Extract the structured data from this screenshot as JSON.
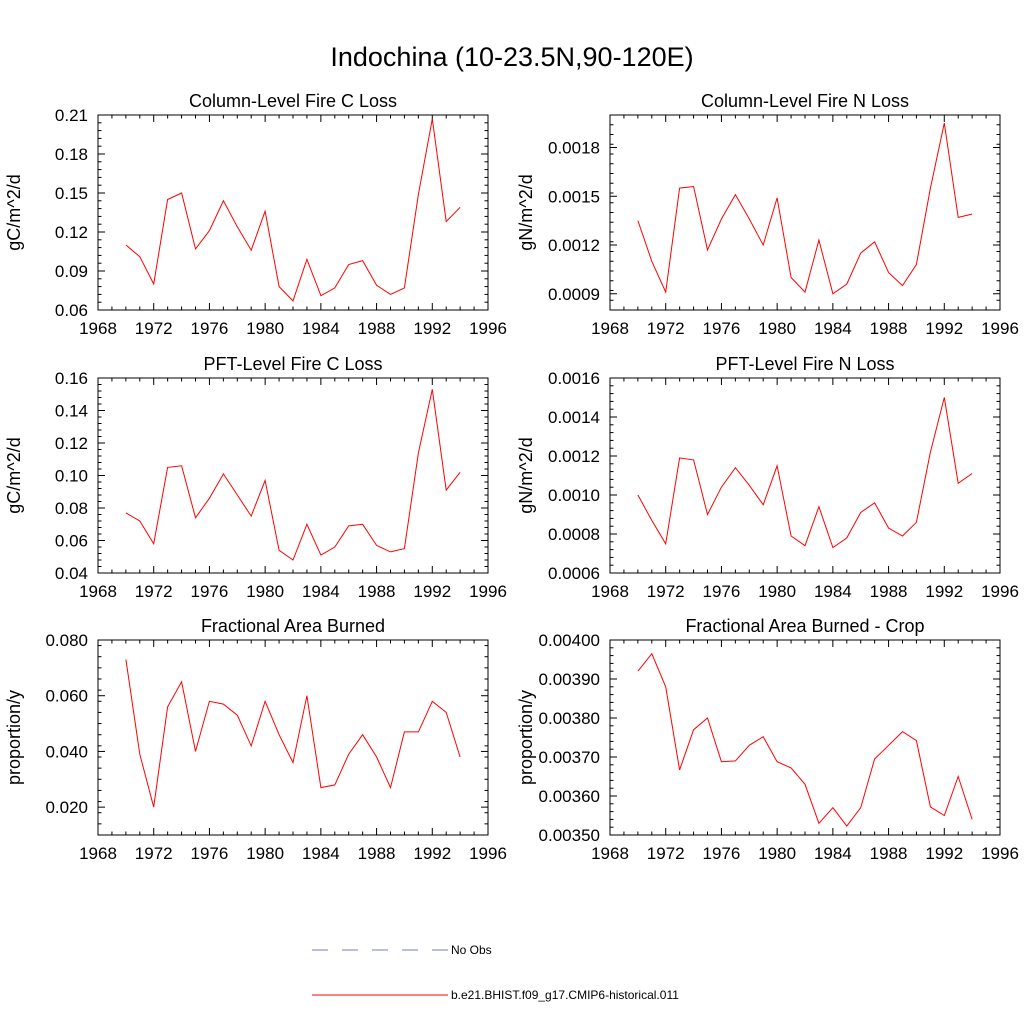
{
  "figure_title": "Indochina (10-23.5N,90-120E)",
  "legend": {
    "items": [
      {
        "label": "No Obs",
        "color": "#7a7ad0",
        "style": "dashed"
      },
      {
        "label": "b.e21.BHIST.f09_g17.CMIP6-historical.011",
        "color": "#ff0000",
        "style": "solid"
      }
    ]
  },
  "chart_data": [
    {
      "type": "line",
      "title": "Column-Level Fire C Loss",
      "ylabel": "gC/m^2/d",
      "xlim": [
        1968,
        1996
      ],
      "xticks": [
        1968,
        1972,
        1976,
        1980,
        1984,
        1988,
        1992,
        1996
      ],
      "ylim": [
        0.06,
        0.21
      ],
      "yticks": [
        "0.06",
        "0.09",
        "0.12",
        "0.15",
        "0.18",
        "0.21"
      ],
      "x": [
        1970,
        1971,
        1972,
        1973,
        1974,
        1975,
        1976,
        1977,
        1978,
        1979,
        1980,
        1981,
        1982,
        1983,
        1984,
        1985,
        1986,
        1987,
        1988,
        1989,
        1990,
        1991,
        1992,
        1993,
        1994
      ],
      "series": [
        {
          "name": "b.e21.BHIST.f09_g17.CMIP6-historical.011",
          "color": "#ff0000",
          "values": [
            0.11,
            0.101,
            0.08,
            0.145,
            0.15,
            0.107,
            0.121,
            0.144,
            0.124,
            0.106,
            0.136,
            0.078,
            0.067,
            0.099,
            0.071,
            0.077,
            0.095,
            0.098,
            0.079,
            0.072,
            0.077,
            0.149,
            0.207,
            0.128,
            0.139
          ]
        }
      ]
    },
    {
      "type": "line",
      "title": "Column-Level Fire N Loss",
      "ylabel": "gN/m^2/d",
      "xlim": [
        1968,
        1996
      ],
      "xticks": [
        1968,
        1972,
        1976,
        1980,
        1984,
        1988,
        1992,
        1996
      ],
      "ylim": [
        0.0008,
        0.002
      ],
      "yticks": [
        "0.0009",
        "0.0012",
        "0.0015",
        "0.0018"
      ],
      "x": [
        1970,
        1971,
        1972,
        1973,
        1974,
        1975,
        1976,
        1977,
        1978,
        1979,
        1980,
        1981,
        1982,
        1983,
        1984,
        1985,
        1986,
        1987,
        1988,
        1989,
        1990,
        1991,
        1992,
        1993,
        1994
      ],
      "series": [
        {
          "name": "b.e21.BHIST.f09_g17.CMIP6-historical.011",
          "color": "#ff0000",
          "values": [
            0.00135,
            0.0011,
            0.00091,
            0.00155,
            0.00156,
            0.00117,
            0.00136,
            0.00151,
            0.00136,
            0.0012,
            0.00149,
            0.001,
            0.00091,
            0.00123,
            0.0009,
            0.00096,
            0.00115,
            0.00122,
            0.00103,
            0.00095,
            0.00108,
            0.00155,
            0.00195,
            0.00137,
            0.00139
          ]
        }
      ]
    },
    {
      "type": "line",
      "title": "PFT-Level Fire C Loss",
      "ylabel": "gC/m^2/d",
      "xlim": [
        1968,
        1996
      ],
      "xticks": [
        1968,
        1972,
        1976,
        1980,
        1984,
        1988,
        1992,
        1996
      ],
      "ylim": [
        0.04,
        0.16
      ],
      "yticks": [
        "0.04",
        "0.06",
        "0.08",
        "0.10",
        "0.12",
        "0.14",
        "0.16"
      ],
      "x": [
        1970,
        1971,
        1972,
        1973,
        1974,
        1975,
        1976,
        1977,
        1978,
        1979,
        1980,
        1981,
        1982,
        1983,
        1984,
        1985,
        1986,
        1987,
        1988,
        1989,
        1990,
        1991,
        1992,
        1993,
        1994
      ],
      "series": [
        {
          "name": "b.e21.BHIST.f09_g17.CMIP6-historical.011",
          "color": "#ff0000",
          "values": [
            0.077,
            0.072,
            0.058,
            0.105,
            0.106,
            0.074,
            0.086,
            0.101,
            0.088,
            0.075,
            0.097,
            0.054,
            0.048,
            0.07,
            0.051,
            0.056,
            0.069,
            0.07,
            0.057,
            0.053,
            0.055,
            0.114,
            0.153,
            0.091,
            0.102
          ]
        }
      ]
    },
    {
      "type": "line",
      "title": "PFT-Level Fire N Loss",
      "ylabel": "gN/m^2/d",
      "xlim": [
        1968,
        1996
      ],
      "xticks": [
        1968,
        1972,
        1976,
        1980,
        1984,
        1988,
        1992,
        1996
      ],
      "ylim": [
        0.0006,
        0.0016
      ],
      "yticks": [
        "0.0006",
        "0.0008",
        "0.0010",
        "0.0012",
        "0.0014",
        "0.0016"
      ],
      "x": [
        1970,
        1971,
        1972,
        1973,
        1974,
        1975,
        1976,
        1977,
        1978,
        1979,
        1980,
        1981,
        1982,
        1983,
        1984,
        1985,
        1986,
        1987,
        1988,
        1989,
        1990,
        1991,
        1992,
        1993,
        1994
      ],
      "series": [
        {
          "name": "b.e21.BHIST.f09_g17.CMIP6-historical.011",
          "color": "#ff0000",
          "values": [
            0.001,
            0.00087,
            0.00075,
            0.00119,
            0.00118,
            0.0009,
            0.00104,
            0.00114,
            0.00105,
            0.00095,
            0.00115,
            0.00079,
            0.00074,
            0.00094,
            0.00073,
            0.00078,
            0.00091,
            0.00096,
            0.00083,
            0.00079,
            0.00086,
            0.00122,
            0.0015,
            0.00106,
            0.00111
          ]
        }
      ]
    },
    {
      "type": "line",
      "title": "Fractional Area Burned",
      "ylabel": "proportion/y",
      "xlim": [
        1968,
        1996
      ],
      "xticks": [
        1968,
        1972,
        1976,
        1980,
        1984,
        1988,
        1992,
        1996
      ],
      "ylim": [
        0.01,
        0.08
      ],
      "yticks": [
        "0.020",
        "0.040",
        "0.060",
        "0.080"
      ],
      "x": [
        1970,
        1971,
        1972,
        1973,
        1974,
        1975,
        1976,
        1977,
        1978,
        1979,
        1980,
        1981,
        1982,
        1983,
        1984,
        1985,
        1986,
        1987,
        1988,
        1989,
        1990,
        1991,
        1992,
        1993,
        1994
      ],
      "series": [
        {
          "name": "b.e21.BHIST.f09_g17.CMIP6-historical.011",
          "color": "#ff0000",
          "values": [
            0.073,
            0.039,
            0.02,
            0.056,
            0.065,
            0.04,
            0.058,
            0.057,
            0.053,
            0.042,
            0.058,
            0.046,
            0.036,
            0.06,
            0.027,
            0.028,
            0.039,
            0.046,
            0.038,
            0.027,
            0.047,
            0.047,
            0.058,
            0.054,
            0.038
          ]
        }
      ]
    },
    {
      "type": "line",
      "title": "Fractional Area Burned - Crop",
      "ylabel": "proportion/y",
      "xlim": [
        1968,
        1996
      ],
      "xticks": [
        1968,
        1972,
        1976,
        1980,
        1984,
        1988,
        1992,
        1996
      ],
      "ylim": [
        0.0035,
        0.004
      ],
      "yticks": [
        "0.00350",
        "0.00360",
        "0.00370",
        "0.00380",
        "0.00390",
        "0.00400"
      ],
      "x": [
        1970,
        1971,
        1972,
        1973,
        1974,
        1975,
        1976,
        1977,
        1978,
        1979,
        1980,
        1981,
        1982,
        1983,
        1984,
        1985,
        1986,
        1987,
        1988,
        1989,
        1990,
        1991,
        1992,
        1993,
        1994
      ],
      "series": [
        {
          "name": "b.e21.BHIST.f09_g17.CMIP6-historical.011",
          "color": "#ff0000",
          "values": [
            0.00392,
            0.003965,
            0.00388,
            0.003667,
            0.00377,
            0.0038,
            0.003688,
            0.00369,
            0.00373,
            0.003752,
            0.003688,
            0.003672,
            0.00363,
            0.00353,
            0.00357,
            0.003523,
            0.00357,
            0.003695,
            0.00373,
            0.003765,
            0.003742,
            0.003572,
            0.00355,
            0.00365,
            0.00354
          ]
        }
      ]
    }
  ]
}
